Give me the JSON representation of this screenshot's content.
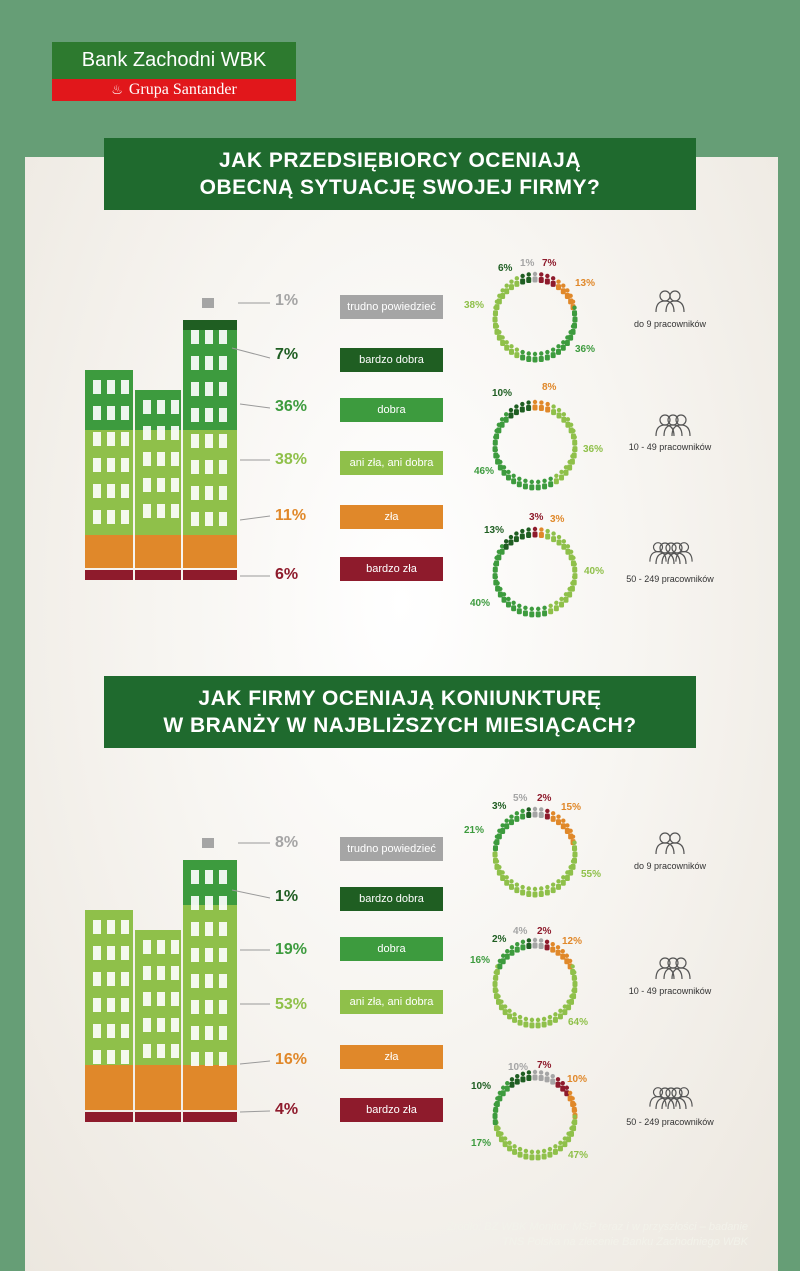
{
  "brand": {
    "name": "Bank Zachodni WBK",
    "group": "Grupa Santander"
  },
  "colors": {
    "background": "#669e76",
    "title_bg": "#1f6a2e",
    "trudno": "#a5a5a5",
    "bardzo_dobra": "#1f5e22",
    "dobra": "#3d9b3e",
    "ani": "#8fc04a",
    "zla": "#e0882a",
    "bardzo_zla": "#8e1b2c"
  },
  "categories": [
    "trudno powiedzieć",
    "bardzo dobra",
    "dobra",
    "ani zła, ani dobra",
    "zła",
    "bardzo zła"
  ],
  "company_sizes": [
    "do 9 pracowników",
    "10 - 49 pracowników",
    "50 - 249 pracowników"
  ],
  "section1": {
    "title_line1": "JAK PRZEDSIĘBIORCY OCENIAJĄ",
    "title_line2": "OBECNĄ SYTUACJĘ SWOJEJ FIRMY?",
    "percents": [
      "1%",
      "7%",
      "36%",
      "38%",
      "11%",
      "6%"
    ]
  },
  "section2": {
    "title_line1": "JAK FIRMY OCENIAJĄ KONIUNKTURĘ",
    "title_line2": "W BRANŻY W NAJBLIŻSZYCH MIESIĄCACH?",
    "percents": [
      "8%",
      "1%",
      "19%",
      "53%",
      "16%",
      "4%"
    ]
  },
  "chart_data": [
    {
      "type": "bar",
      "title": "JAK PRZEDSIĘBIORCY OCENIAJĄ OBECNĄ SYTUACJĘ SWOJEJ FIRMY?",
      "categories": [
        "trudno powiedzieć",
        "bardzo dobra",
        "dobra",
        "ani zła, ani dobra",
        "zła",
        "bardzo zła"
      ],
      "values": [
        1,
        7,
        36,
        38,
        11,
        6
      ]
    },
    {
      "type": "pie",
      "title": "do 9 pracowników",
      "categories": [
        "trudno powiedzieć",
        "bardzo zła",
        "zła",
        "dobra",
        "ani zła, ani dobra",
        "bardzo dobra"
      ],
      "values": [
        1,
        7,
        13,
        36,
        38,
        6
      ],
      "labels": [
        "1%",
        "7%",
        "13%",
        "36%",
        "38%",
        "6%"
      ]
    },
    {
      "type": "pie",
      "title": "10 - 49 pracowników",
      "categories": [
        "zła",
        "ani zła, ani dobra",
        "dobra",
        "bardzo dobra"
      ],
      "values": [
        8,
        36,
        46,
        10
      ],
      "labels": [
        "8%",
        "36%",
        "46%",
        "10%"
      ]
    },
    {
      "type": "pie",
      "title": "50 - 249 pracowników",
      "categories": [
        "bardzo zła",
        "zła",
        "ani zła, ani dobra",
        "dobra",
        "bardzo dobra"
      ],
      "values": [
        3,
        3,
        40,
        40,
        13
      ],
      "labels": [
        "3%",
        "3%",
        "40%",
        "40%",
        "13%"
      ]
    },
    {
      "type": "bar",
      "title": "JAK FIRMY OCENIAJĄ KONIUNKTURĘ W BRANŻY W NAJBLIŻSZYCH MIESIĄCACH?",
      "categories": [
        "trudno powiedzieć",
        "bardzo dobra",
        "dobra",
        "ani zła, ani dobra",
        "zła",
        "bardzo zła"
      ],
      "values": [
        8,
        1,
        19,
        53,
        16,
        4
      ]
    },
    {
      "type": "pie",
      "title": "do 9 pracowników",
      "categories": [
        "trudno powiedzieć",
        "bardzo zła",
        "zła",
        "ani zła, ani dobra",
        "dobra",
        "bardzo dobra"
      ],
      "values": [
        5,
        2,
        15,
        55,
        21,
        3
      ],
      "labels": [
        "5%",
        "2%",
        "15%",
        "55%",
        "21%",
        "3%"
      ]
    },
    {
      "type": "pie",
      "title": "10 - 49 pracowników",
      "categories": [
        "trudno powiedzieć",
        "bardzo zła",
        "zła",
        "ani zła, ani dobra",
        "dobra",
        "bardzo dobra"
      ],
      "values": [
        4,
        2,
        12,
        64,
        16,
        2
      ],
      "labels": [
        "4%",
        "2%",
        "12%",
        "64%",
        "16%",
        "2%"
      ]
    },
    {
      "type": "pie",
      "title": "50 - 249 pracowników",
      "categories": [
        "trudno powiedzieć",
        "bardzo zła",
        "zła",
        "ani zła, ani dobra",
        "dobra",
        "bardzo dobra"
      ],
      "values": [
        10,
        7,
        10,
        47,
        17,
        10
      ],
      "labels": [
        "10%",
        "7%",
        "10%",
        "47%",
        "17%",
        "10%"
      ]
    }
  ],
  "source": {
    "line1": "Źródło: BZ WBK Monitor: MŚP teraz i w przyszłości – badanie",
    "line2": "TNS Polska na zlecenie Banku Zachodniego WBK"
  }
}
